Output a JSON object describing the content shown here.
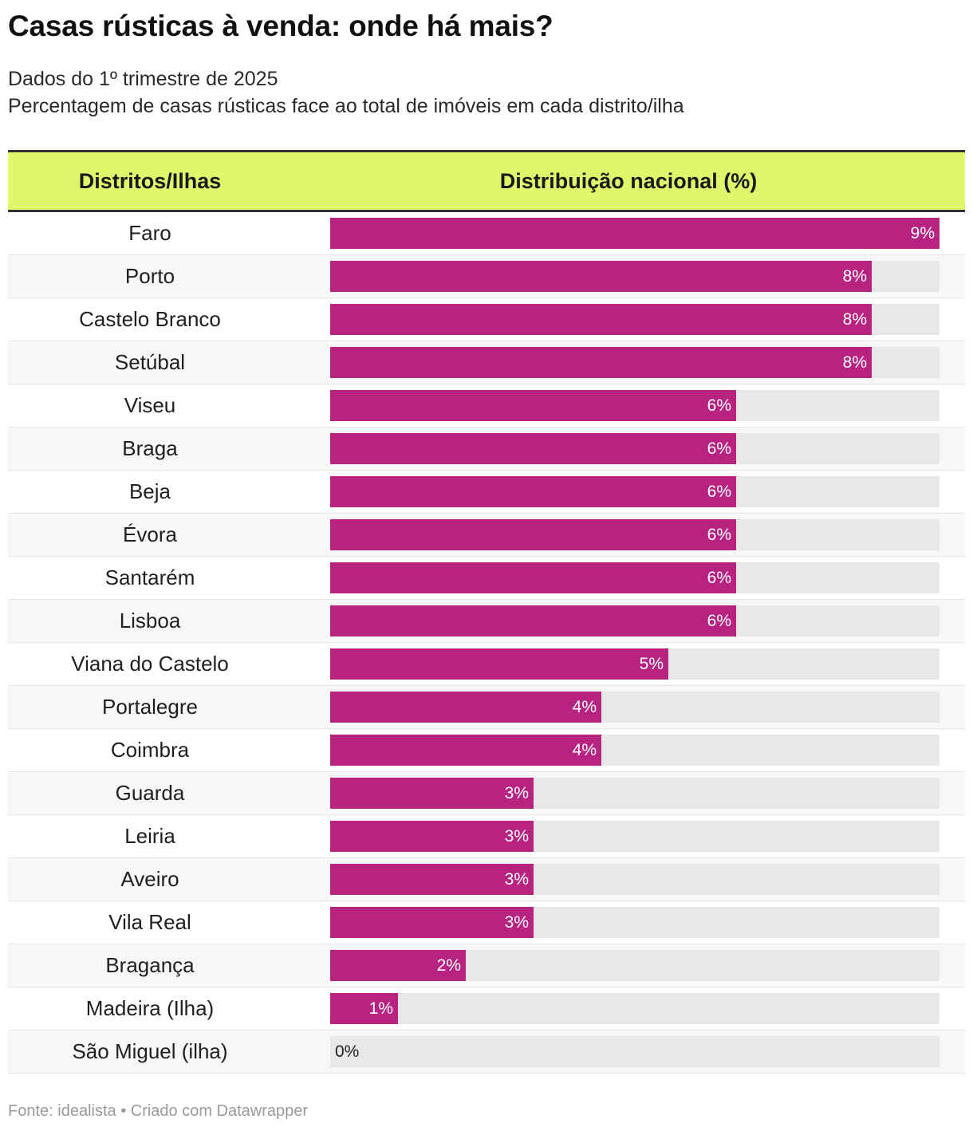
{
  "title": "Casas rústicas à venda: onde há mais?",
  "subtitle_line1": "Dados do 1º trimestre de 2025",
  "subtitle_line2": "Percentagem de casas rústicas face ao total de imóveis em cada distrito/ilha",
  "header": {
    "col_name": "Distritos/Ilhas",
    "col_dist": "Distribuição nacional (%)"
  },
  "footer": "Fonte: idealista • Criado com Datawrapper",
  "colors": {
    "bar": "#b82382",
    "track": "#e8e8e8",
    "header_bg": "#e2f66c"
  },
  "chart_data": {
    "type": "bar",
    "orientation": "horizontal",
    "xlim": [
      0,
      9
    ],
    "categories": [
      "Faro",
      "Porto",
      "Castelo Branco",
      "Setúbal",
      "Viseu",
      "Braga",
      "Beja",
      "Évora",
      "Santarém",
      "Lisboa",
      "Viana do Castelo",
      "Portalegre",
      "Coimbra",
      "Guarda",
      "Leiria",
      "Aveiro",
      "Vila Real",
      "Bragança",
      "Madeira (Ilha)",
      "São Miguel (ilha)"
    ],
    "values": [
      9,
      8,
      8,
      8,
      6,
      6,
      6,
      6,
      6,
      6,
      5,
      4,
      4,
      3,
      3,
      3,
      3,
      2,
      1,
      0
    ],
    "labels": [
      "9%",
      "8%",
      "8%",
      "8%",
      "6%",
      "6%",
      "6%",
      "6%",
      "6%",
      "6%",
      "5%",
      "4%",
      "4%",
      "3%",
      "3%",
      "3%",
      "3%",
      "2%",
      "1%",
      "0%"
    ]
  }
}
